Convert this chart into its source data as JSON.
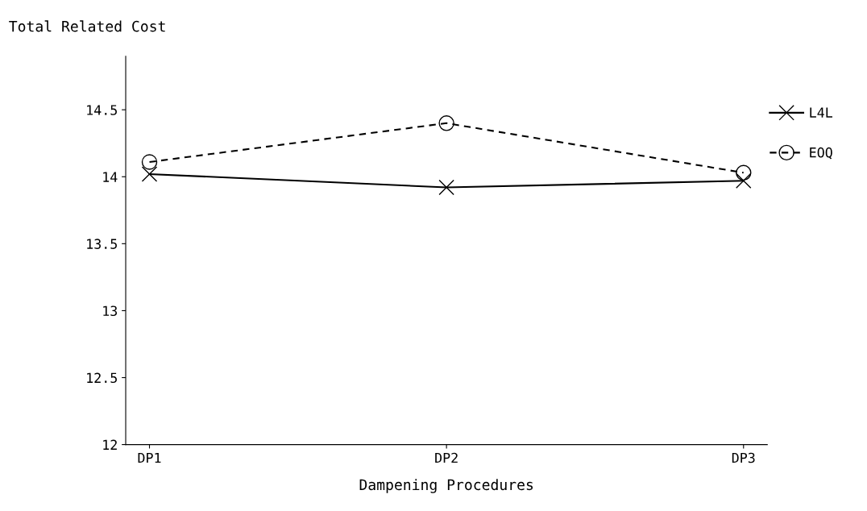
{
  "chart_data": {
    "type": "line",
    "ylabel": "Total Related Cost",
    "xlabel": "Dampening Procedures",
    "categories": [
      "DP1",
      "DP2",
      "DP3"
    ],
    "series": [
      {
        "name": "L4L",
        "color": "#000000",
        "values": [
          14.02,
          13.92,
          13.97
        ],
        "marker": "cross",
        "line_style": "solid"
      },
      {
        "name": "EOQ",
        "color": "#000000",
        "values": [
          14.11,
          14.4,
          14.03
        ],
        "marker": "circle",
        "line_style": "dashed"
      }
    ],
    "ylim": [
      12,
      14.9
    ],
    "yticks": [
      12,
      12.5,
      13,
      13.5,
      14,
      14.5
    ],
    "grid": false,
    "legend": "right"
  }
}
